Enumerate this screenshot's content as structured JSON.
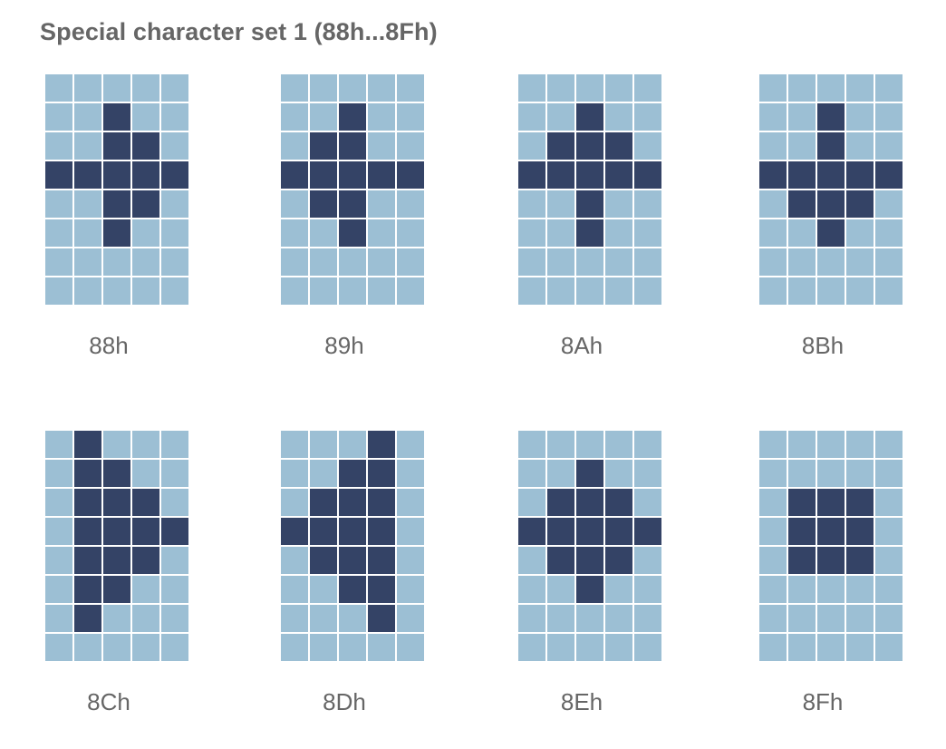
{
  "title": "Special character set 1 (88h...8Fh)",
  "colors": {
    "pixel_on": "#344366",
    "pixel_off": "#9cbfd4",
    "text": "#666666"
  },
  "characters": [
    {
      "code": "88h",
      "bitmap": [
        "00000",
        "00100",
        "00110",
        "11111",
        "00110",
        "00100",
        "00000",
        "00000"
      ]
    },
    {
      "code": "89h",
      "bitmap": [
        "00000",
        "00100",
        "01100",
        "11111",
        "01100",
        "00100",
        "00000",
        "00000"
      ]
    },
    {
      "code": "8Ah",
      "bitmap": [
        "00000",
        "00100",
        "01110",
        "11111",
        "00100",
        "00100",
        "00000",
        "00000"
      ]
    },
    {
      "code": "8Bh",
      "bitmap": [
        "00000",
        "00100",
        "00100",
        "11111",
        "01110",
        "00100",
        "00000",
        "00000"
      ]
    },
    {
      "code": "8Ch",
      "bitmap": [
        "01000",
        "01100",
        "01110",
        "01111",
        "01110",
        "01100",
        "01000",
        "00000"
      ]
    },
    {
      "code": "8Dh",
      "bitmap": [
        "00010",
        "00110",
        "01110",
        "11110",
        "01110",
        "00110",
        "00010",
        "00000"
      ]
    },
    {
      "code": "8Eh",
      "bitmap": [
        "00000",
        "00100",
        "01110",
        "11111",
        "01110",
        "00100",
        "00000",
        "00000"
      ]
    },
    {
      "code": "8Fh",
      "bitmap": [
        "00000",
        "00000",
        "01110",
        "01110",
        "01110",
        "00000",
        "00000",
        "00000"
      ]
    }
  ]
}
